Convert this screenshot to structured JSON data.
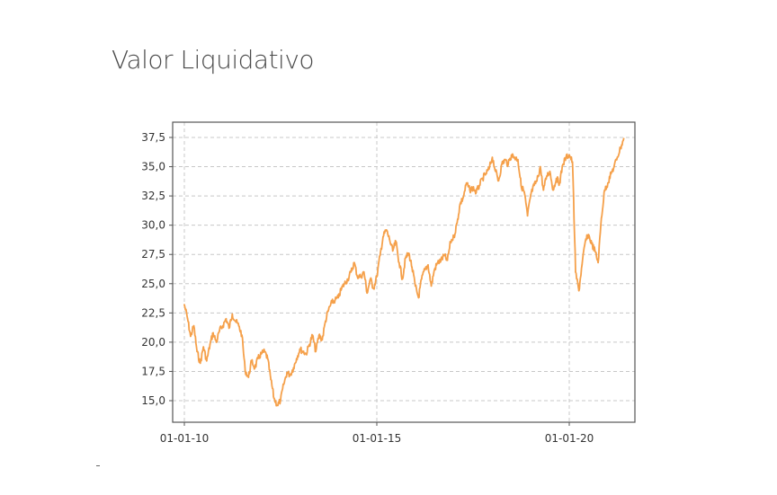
{
  "title": "Valor Liquidativo",
  "colors": {
    "line": "#f5a04a",
    "grid": "#c8c8c8",
    "axis": "#555555"
  },
  "chart_data": {
    "type": "line",
    "title": "Valor Liquidativo",
    "xlabel": "",
    "ylabel": "",
    "x_ticks": [
      "01-01-10",
      "01-01-15",
      "01-01-20"
    ],
    "y_ticks": [
      "15,0",
      "17,5",
      "20,0",
      "22,5",
      "25,0",
      "27,5",
      "30,0",
      "32,5",
      "35,0",
      "37,5"
    ],
    "x_range": [
      "2010-01-01",
      "2021-07-01"
    ],
    "ylim": [
      14.0,
      38.0
    ],
    "grid": true,
    "legend": "none",
    "series": [
      {
        "values": [
          [
            "2010-01-01",
            23.2
          ],
          [
            "2010-02-01",
            22.0
          ],
          [
            "2010-03-01",
            20.5
          ],
          [
            "2010-04-01",
            21.4
          ],
          [
            "2010-05-01",
            19.2
          ],
          [
            "2010-06-01",
            18.2
          ],
          [
            "2010-07-01",
            19.6
          ],
          [
            "2010-08-01",
            18.4
          ],
          [
            "2010-09-01",
            19.8
          ],
          [
            "2010-10-01",
            20.8
          ],
          [
            "2010-11-01",
            20.0
          ],
          [
            "2010-12-01",
            21.0
          ],
          [
            "2011-01-01",
            21.4
          ],
          [
            "2011-02-01",
            22.0
          ],
          [
            "2011-03-01",
            21.2
          ],
          [
            "2011-04-01",
            22.4
          ],
          [
            "2011-05-01",
            21.8
          ],
          [
            "2011-06-01",
            21.4
          ],
          [
            "2011-07-01",
            20.6
          ],
          [
            "2011-08-01",
            17.6
          ],
          [
            "2011-09-01",
            17.0
          ],
          [
            "2011-10-01",
            18.4
          ],
          [
            "2011-11-01",
            17.8
          ],
          [
            "2011-12-01",
            18.6
          ],
          [
            "2012-01-01",
            19.0
          ],
          [
            "2012-02-01",
            19.2
          ],
          [
            "2012-03-01",
            18.6
          ],
          [
            "2012-04-01",
            16.8
          ],
          [
            "2012-05-01",
            15.2
          ],
          [
            "2012-06-01",
            14.6
          ],
          [
            "2012-07-01",
            15.0
          ],
          [
            "2012-08-01",
            16.4
          ],
          [
            "2012-09-01",
            17.4
          ],
          [
            "2012-10-01",
            17.2
          ],
          [
            "2012-11-01",
            17.8
          ],
          [
            "2012-12-01",
            18.6
          ],
          [
            "2013-01-01",
            19.4
          ],
          [
            "2013-02-01",
            19.2
          ],
          [
            "2013-03-01",
            19.0
          ],
          [
            "2013-04-01",
            19.8
          ],
          [
            "2013-05-01",
            20.6
          ],
          [
            "2013-06-01",
            19.2
          ],
          [
            "2013-07-01",
            20.6
          ],
          [
            "2013-08-01",
            20.2
          ],
          [
            "2013-09-01",
            21.8
          ],
          [
            "2013-10-01",
            22.8
          ],
          [
            "2013-11-01",
            23.4
          ],
          [
            "2013-12-01",
            23.6
          ],
          [
            "2014-01-01",
            23.8
          ],
          [
            "2014-02-01",
            24.6
          ],
          [
            "2014-03-01",
            25.0
          ],
          [
            "2014-04-01",
            25.4
          ],
          [
            "2014-05-01",
            26.0
          ],
          [
            "2014-06-01",
            26.8
          ],
          [
            "2014-07-01",
            25.6
          ],
          [
            "2014-08-01",
            25.6
          ],
          [
            "2014-09-01",
            26.0
          ],
          [
            "2014-10-01",
            24.2
          ],
          [
            "2014-11-01",
            25.4
          ],
          [
            "2014-12-01",
            24.6
          ],
          [
            "2015-01-01",
            25.6
          ],
          [
            "2015-02-01",
            27.4
          ],
          [
            "2015-03-01",
            29.0
          ],
          [
            "2015-04-01",
            29.6
          ],
          [
            "2015-05-01",
            28.8
          ],
          [
            "2015-06-01",
            27.8
          ],
          [
            "2015-07-01",
            28.6
          ],
          [
            "2015-08-01",
            26.8
          ],
          [
            "2015-09-01",
            25.4
          ],
          [
            "2015-10-01",
            27.2
          ],
          [
            "2015-11-01",
            27.6
          ],
          [
            "2015-12-01",
            26.4
          ],
          [
            "2016-01-01",
            24.8
          ],
          [
            "2016-02-01",
            23.8
          ],
          [
            "2016-03-01",
            25.4
          ],
          [
            "2016-04-01",
            26.2
          ],
          [
            "2016-05-01",
            26.6
          ],
          [
            "2016-06-01",
            24.8
          ],
          [
            "2016-07-01",
            26.2
          ],
          [
            "2016-08-01",
            26.8
          ],
          [
            "2016-09-01",
            27.0
          ],
          [
            "2016-10-01",
            27.4
          ],
          [
            "2016-11-01",
            27.0
          ],
          [
            "2016-12-01",
            28.6
          ],
          [
            "2017-01-01",
            29.0
          ],
          [
            "2017-02-01",
            30.2
          ],
          [
            "2017-03-01",
            31.8
          ],
          [
            "2017-04-01",
            32.4
          ],
          [
            "2017-05-01",
            33.6
          ],
          [
            "2017-06-01",
            33.0
          ],
          [
            "2017-07-01",
            33.2
          ],
          [
            "2017-08-01",
            32.8
          ],
          [
            "2017-09-01",
            33.4
          ],
          [
            "2017-10-01",
            34.0
          ],
          [
            "2017-11-01",
            34.4
          ],
          [
            "2017-12-01",
            34.8
          ],
          [
            "2018-01-01",
            35.8
          ],
          [
            "2018-02-01",
            34.6
          ],
          [
            "2018-03-01",
            33.8
          ],
          [
            "2018-04-01",
            35.2
          ],
          [
            "2018-05-01",
            35.6
          ],
          [
            "2018-06-01",
            35.2
          ],
          [
            "2018-07-01",
            36.0
          ],
          [
            "2018-08-01",
            35.8
          ],
          [
            "2018-09-01",
            35.6
          ],
          [
            "2018-10-01",
            33.4
          ],
          [
            "2018-11-01",
            32.8
          ],
          [
            "2018-12-01",
            30.8
          ],
          [
            "2019-01-01",
            32.6
          ],
          [
            "2019-02-01",
            33.4
          ],
          [
            "2019-03-01",
            33.8
          ],
          [
            "2019-04-01",
            35.0
          ],
          [
            "2019-05-01",
            33.0
          ],
          [
            "2019-06-01",
            34.2
          ],
          [
            "2019-07-01",
            34.6
          ],
          [
            "2019-08-01",
            33.0
          ],
          [
            "2019-09-01",
            34.0
          ],
          [
            "2019-10-01",
            33.6
          ],
          [
            "2019-11-01",
            35.2
          ],
          [
            "2019-12-01",
            35.8
          ],
          [
            "2020-01-01",
            36.0
          ],
          [
            "2020-02-01",
            35.4
          ],
          [
            "2020-03-01",
            26.0
          ],
          [
            "2020-04-01",
            24.4
          ],
          [
            "2020-05-01",
            26.6
          ],
          [
            "2020-06-01",
            28.6
          ],
          [
            "2020-07-01",
            29.2
          ],
          [
            "2020-08-01",
            28.4
          ],
          [
            "2020-09-01",
            27.8
          ],
          [
            "2020-10-01",
            26.8
          ],
          [
            "2020-11-01",
            30.6
          ],
          [
            "2020-12-01",
            33.0
          ],
          [
            "2021-01-01",
            33.6
          ],
          [
            "2021-02-01",
            34.4
          ],
          [
            "2021-03-01",
            35.0
          ],
          [
            "2021-04-01",
            35.8
          ],
          [
            "2021-05-01",
            36.6
          ],
          [
            "2021-06-01",
            37.4
          ]
        ]
      }
    ]
  }
}
